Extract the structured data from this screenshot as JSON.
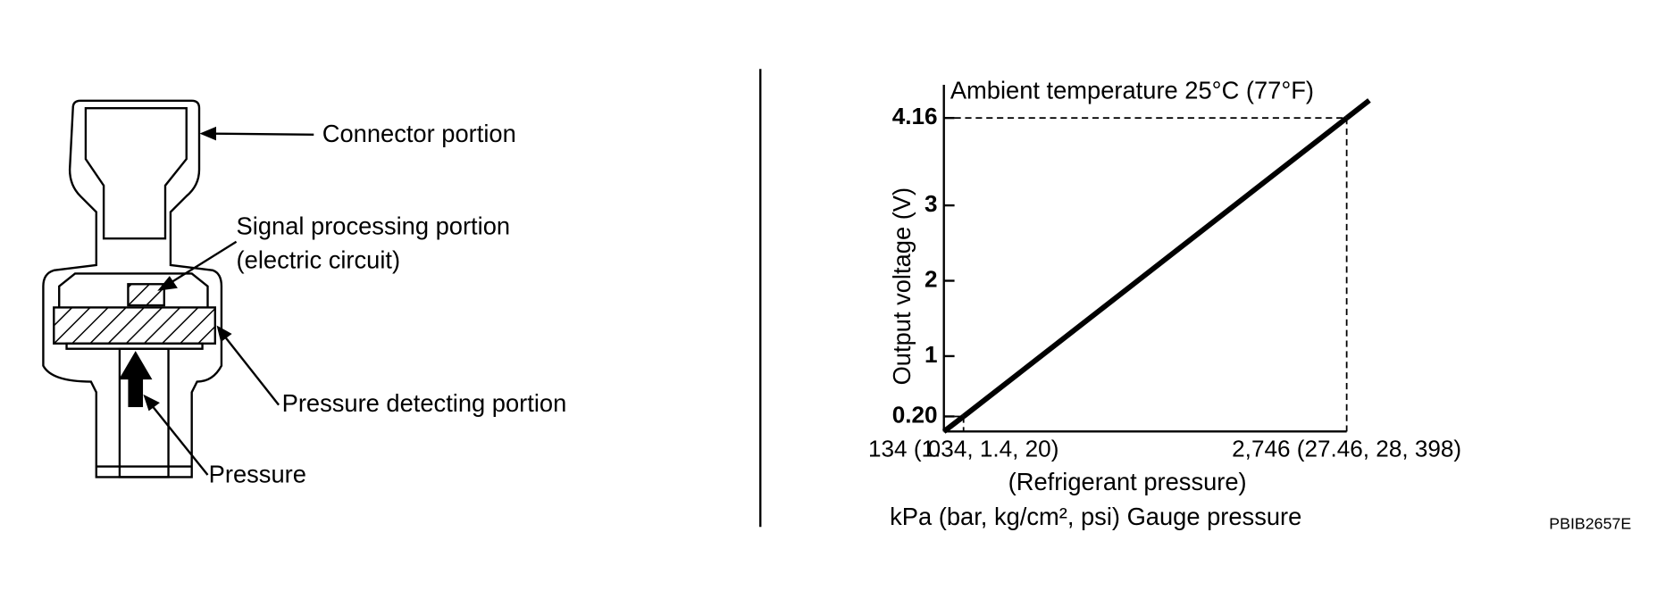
{
  "diagram": {
    "labels": [
      "Connector portion",
      "Signal processing portion",
      "(electric circuit)",
      "Pressure detecting portion",
      "Pressure"
    ]
  },
  "chart_data": {
    "type": "line",
    "annotation": "Ambient temperature 25°C (77°F)",
    "xlabel": "(Refrigerant pressure)",
    "xlabel_units": "kPa (bar, kg/cm², psi) Gauge pressure",
    "ylabel": "Output voltage (V)",
    "x": [
      134,
      2746
    ],
    "series": [
      {
        "color": "#000000",
        "values": [
          0.2,
          4.16
        ]
      }
    ],
    "xlim": [
      0,
      2900
    ],
    "ylim": [
      0,
      4.6
    ],
    "xticks": [
      0,
      {
        "value": 134,
        "label": "134 (1.34, 1.4, 20)"
      },
      {
        "value": 2746,
        "label": "2,746 (27.46, 28, 398)"
      }
    ],
    "yticks": [
      {
        "value": 0.2,
        "label": "0.20"
      },
      1,
      2,
      3,
      4.16
    ],
    "grid": false
  },
  "code": "PBIB2657E"
}
